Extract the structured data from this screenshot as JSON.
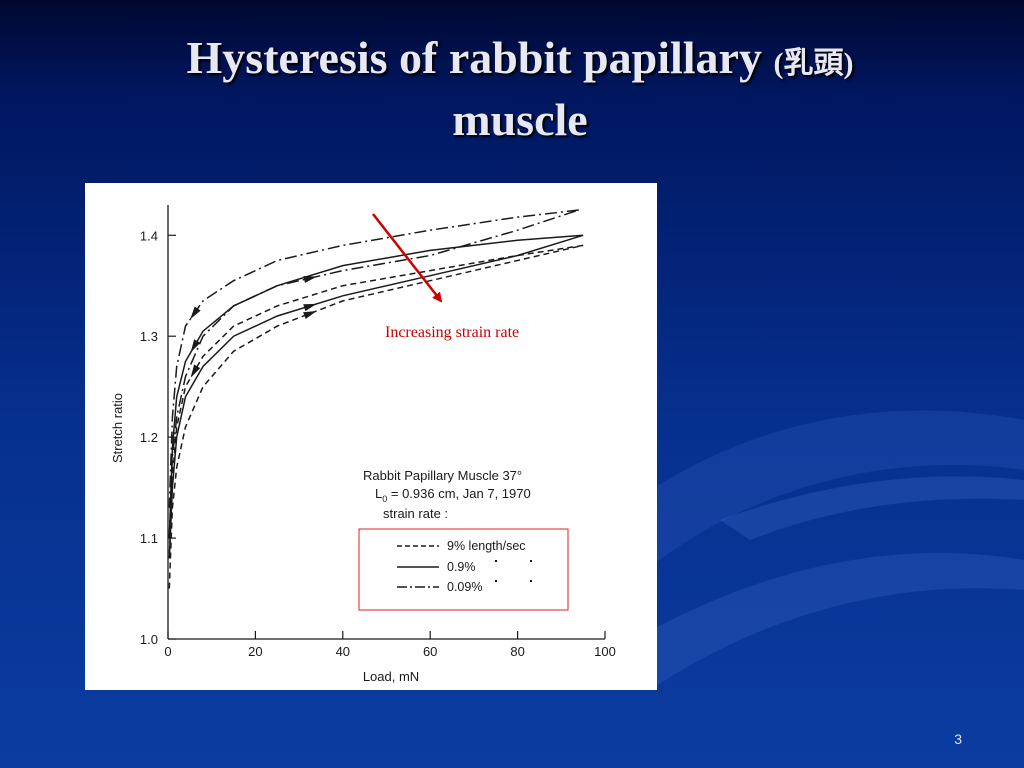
{
  "slide": {
    "title_line1": "Hysteresis of rabbit papillary",
    "title_cjk": "(乳頭)",
    "title_line2": "muscle",
    "page_number": "3"
  },
  "colors": {
    "annotation": "#cc0000",
    "ink": "#1a1a1a"
  },
  "chart_data": {
    "type": "line",
    "xlabel": "Load, mN",
    "ylabel": "Stretch ratio",
    "xlim": [
      0,
      100
    ],
    "ylim": [
      1.0,
      1.43
    ],
    "x_ticks": [
      0,
      20,
      40,
      60,
      80,
      100
    ],
    "y_ticks": [
      1.0,
      1.1,
      1.2,
      1.3,
      1.4
    ],
    "y_tick_labels": [
      "1.0",
      "1.1",
      "1.2",
      "1.3",
      "1.4"
    ],
    "info_lines": [
      "Rabbit Papillary Muscle 37°",
      "L",
      "0",
      " = 0.936 cm, Jan 7, 1970",
      "strain rate :"
    ],
    "legend": [
      {
        "label": "9% length/sec",
        "dash": "dashed"
      },
      {
        "label": "0.9%",
        "dash": "solid"
      },
      {
        "label": "0.09%",
        "dash": "dashdot"
      }
    ],
    "annotation": "Increasing strain rate",
    "series": [
      {
        "dash": "dashdot",
        "part": "loading",
        "x": [
          0.3,
          1,
          2,
          4,
          8,
          15,
          25,
          40,
          60,
          80,
          94
        ],
        "y": [
          1.1,
          1.18,
          1.22,
          1.26,
          1.3,
          1.33,
          1.35,
          1.365,
          1.38,
          1.405,
          1.425
        ]
      },
      {
        "dash": "dashdot",
        "part": "unloading",
        "x": [
          94,
          80,
          60,
          40,
          25,
          15,
          8,
          4,
          2,
          1,
          0.3
        ],
        "y": [
          1.425,
          1.418,
          1.405,
          1.39,
          1.375,
          1.355,
          1.335,
          1.31,
          1.27,
          1.22,
          1.13
        ]
      },
      {
        "dash": "solid",
        "part": "loading",
        "x": [
          0.3,
          1,
          2,
          4,
          8,
          15,
          25,
          40,
          60,
          80,
          95
        ],
        "y": [
          1.08,
          1.15,
          1.2,
          1.24,
          1.27,
          1.3,
          1.32,
          1.34,
          1.36,
          1.38,
          1.4
        ]
      },
      {
        "dash": "solid",
        "part": "unloading",
        "x": [
          95,
          80,
          60,
          40,
          25,
          15,
          8,
          4,
          2,
          1,
          0.3
        ],
        "y": [
          1.4,
          1.395,
          1.385,
          1.37,
          1.35,
          1.33,
          1.305,
          1.275,
          1.24,
          1.19,
          1.1
        ]
      },
      {
        "dash": "dashed",
        "part": "loading",
        "x": [
          0.3,
          1,
          2,
          4,
          8,
          15,
          25,
          40,
          60,
          80,
          95
        ],
        "y": [
          1.05,
          1.13,
          1.17,
          1.21,
          1.25,
          1.285,
          1.31,
          1.335,
          1.355,
          1.375,
          1.39
        ]
      },
      {
        "dash": "dashed",
        "part": "unloading",
        "x": [
          95,
          80,
          60,
          40,
          25,
          15,
          8,
          4,
          2,
          1,
          0.3
        ],
        "y": [
          1.39,
          1.38,
          1.365,
          1.35,
          1.33,
          1.31,
          1.28,
          1.25,
          1.21,
          1.16,
          1.08
        ]
      }
    ]
  }
}
